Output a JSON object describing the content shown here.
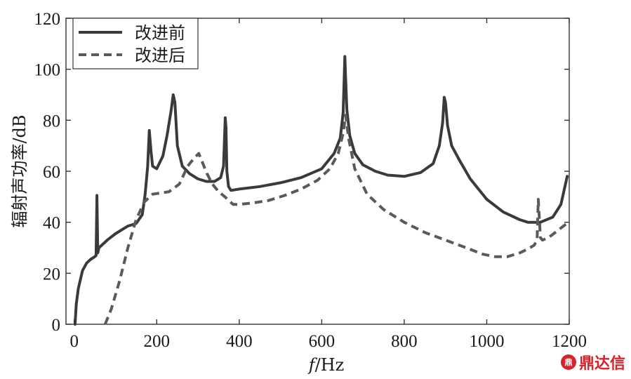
{
  "chart_data": {
    "type": "line",
    "ylabel": "辐射声功率/dB",
    "xlabel_italic": "f",
    "xlabel_unit": "/Hz",
    "xlim": [
      -20,
      1200
    ],
    "ylim": [
      0,
      120
    ],
    "xticks": [
      0,
      200,
      400,
      600,
      800,
      1000,
      1200
    ],
    "yticks": [
      0,
      20,
      40,
      60,
      80,
      100,
      120
    ],
    "grid": false,
    "legend_position": "top-left",
    "series": [
      {
        "name": "改进前",
        "style": "solid",
        "color": "#3a3a3a",
        "x": [
          2,
          5,
          10,
          20,
          30,
          40,
          50,
          53,
          55,
          57,
          60,
          80,
          100,
          130,
          150,
          165,
          172,
          178,
          182,
          186,
          190,
          200,
          215,
          225,
          235,
          240,
          244,
          250,
          262,
          280,
          300,
          320,
          340,
          355,
          362,
          366,
          368,
          370,
          374,
          380,
          400,
          450,
          500,
          550,
          600,
          630,
          645,
          652,
          656,
          658,
          661,
          668,
          680,
          700,
          730,
          760,
          800,
          840,
          870,
          885,
          893,
          897,
          900,
          905,
          915,
          935,
          960,
          1000,
          1040,
          1080,
          1100,
          1130,
          1160,
          1180,
          1195
        ],
        "y": [
          0,
          8,
          14,
          21,
          24,
          25.5,
          26.5,
          27,
          50.5,
          28,
          30,
          33,
          35.5,
          38.5,
          39.5,
          43,
          51,
          62,
          76,
          68,
          62,
          61,
          66,
          74,
          84,
          90,
          87,
          70,
          62,
          59,
          57,
          56,
          56,
          57.5,
          62,
          81,
          77,
          60,
          54,
          52.5,
          53,
          54,
          55.5,
          57.5,
          61,
          67,
          73,
          83,
          105,
          96,
          84,
          74,
          67,
          62.5,
          60,
          58.5,
          58,
          59.5,
          63,
          70,
          79,
          89,
          87,
          78,
          70,
          64,
          57,
          49,
          44,
          41,
          40,
          40,
          42,
          47,
          58
        ]
      },
      {
        "name": "改进后",
        "style": "dashed",
        "color": "#5a5a5a",
        "x": [
          75,
          90,
          110,
          130,
          150,
          170,
          190,
          210,
          230,
          255,
          275,
          290,
          302,
          312,
          322,
          335,
          350,
          365,
          385,
          400,
          430,
          470,
          510,
          550,
          590,
          620,
          640,
          652,
          658,
          665,
          680,
          710,
          750,
          800,
          850,
          900,
          950,
          990,
          1020,
          1050,
          1080,
          1100,
          1115,
          1122,
          1125,
          1130,
          1135,
          1150,
          1170,
          1190,
          1200
        ],
        "y": [
          0,
          6,
          17,
          30,
          41,
          48,
          51,
          51.5,
          52,
          55,
          62,
          65,
          67,
          63,
          59,
          55,
          52,
          50,
          47,
          47,
          47.5,
          48.5,
          50.5,
          53,
          56.5,
          61,
          67,
          75,
          82,
          73,
          61,
          51,
          45,
          40,
          36,
          33,
          30,
          27.5,
          26.5,
          26.5,
          28,
          29.5,
          31,
          33,
          49,
          34,
          33,
          34,
          36.5,
          39,
          40
        ]
      }
    ]
  },
  "watermark": {
    "logo_text": "鼎",
    "text": "鼎达信"
  }
}
